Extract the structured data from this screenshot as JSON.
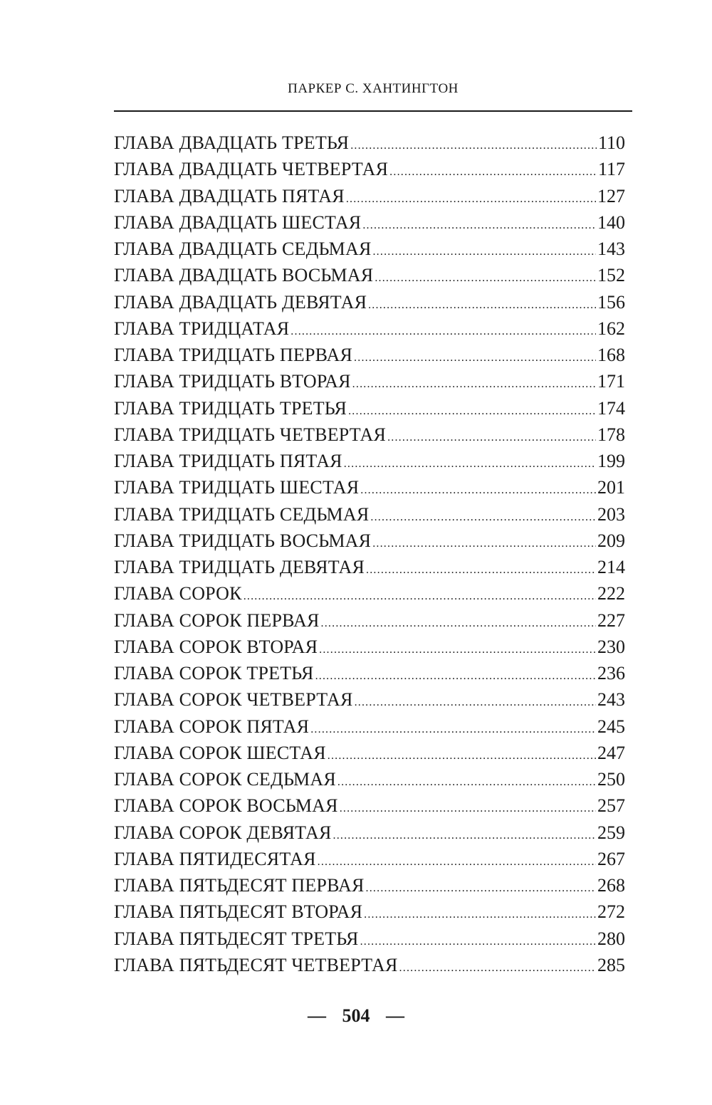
{
  "header": {
    "running_title": "ПАРКЕР С. ХАНТИНГТОН"
  },
  "toc": [
    {
      "title": "ГЛАВА ДВАДЦАТЬ ТРЕТЬЯ",
      "page": "110"
    },
    {
      "title": "ГЛАВА ДВАДЦАТЬ ЧЕТВЕРТАЯ",
      "page": "117"
    },
    {
      "title": "ГЛАВА ДВАДЦАТЬ ПЯТАЯ",
      "page": "127"
    },
    {
      "title": "ГЛАВА ДВАДЦАТЬ ШЕСТАЯ",
      "page": "140"
    },
    {
      "title": "ГЛАВА ДВАДЦАТЬ СЕДЬМАЯ",
      "page": "143"
    },
    {
      "title": "ГЛАВА ДВАДЦАТЬ ВОСЬМАЯ",
      "page": "152"
    },
    {
      "title": "ГЛАВА ДВАДЦАТЬ ДЕВЯТАЯ",
      "page": "156"
    },
    {
      "title": "ГЛАВА ТРИДЦАТАЯ",
      "page": "162"
    },
    {
      "title": "ГЛАВА ТРИДЦАТЬ ПЕРВАЯ",
      "page": "168"
    },
    {
      "title": "ГЛАВА ТРИДЦАТЬ ВТОРАЯ",
      "page": "171"
    },
    {
      "title": "ГЛАВА ТРИДЦАТЬ ТРЕТЬЯ",
      "page": "174"
    },
    {
      "title": "ГЛАВА ТРИДЦАТЬ ЧЕТВЕРТАЯ",
      "page": "178"
    },
    {
      "title": "ГЛАВА ТРИДЦАТЬ ПЯТАЯ",
      "page": "199"
    },
    {
      "title": "ГЛАВА ТРИДЦАТЬ ШЕСТАЯ",
      "page": "201"
    },
    {
      "title": "ГЛАВА ТРИДЦАТЬ СЕДЬМАЯ",
      "page": "203"
    },
    {
      "title": "ГЛАВА ТРИДЦАТЬ ВОСЬМАЯ",
      "page": "209"
    },
    {
      "title": "ГЛАВА ТРИДЦАТЬ ДЕВЯТАЯ",
      "page": "214"
    },
    {
      "title": "ГЛАВА СОРОК",
      "page": "222"
    },
    {
      "title": "ГЛАВА СОРОК ПЕРВАЯ",
      "page": "227"
    },
    {
      "title": "ГЛАВА СОРОК ВТОРАЯ",
      "page": "230"
    },
    {
      "title": "ГЛАВА СОРОК ТРЕТЬЯ",
      "page": "236"
    },
    {
      "title": "ГЛАВА СОРОК ЧЕТВЕРТАЯ",
      "page": "243"
    },
    {
      "title": "ГЛАВА СОРОК ПЯТАЯ",
      "page": "245"
    },
    {
      "title": "ГЛАВА СОРОК ШЕСТАЯ",
      "page": "247"
    },
    {
      "title": "ГЛАВА СОРОК СЕДЬМАЯ",
      "page": "250"
    },
    {
      "title": "ГЛАВА СОРОК ВОСЬМАЯ",
      "page": "257"
    },
    {
      "title": "ГЛАВА СОРОК ДЕВЯТАЯ",
      "page": "259"
    },
    {
      "title": "ГЛАВА ПЯТИДЕСЯТАЯ",
      "page": "267"
    },
    {
      "title": "ГЛАВА ПЯТЬДЕСЯТ ПЕРВАЯ",
      "page": "268"
    },
    {
      "title": "ГЛАВА ПЯТЬДЕСЯТ ВТОРАЯ",
      "page": "272"
    },
    {
      "title": "ГЛАВА ПЯТЬДЕСЯТ ТРЕТЬЯ",
      "page": "280"
    },
    {
      "title": "ГЛАВА ПЯТЬДЕСЯТ ЧЕТВЕРТАЯ",
      "page": "285"
    }
  ],
  "footer": {
    "dash_left": "—",
    "page_number": "504",
    "dash_right": "—"
  }
}
